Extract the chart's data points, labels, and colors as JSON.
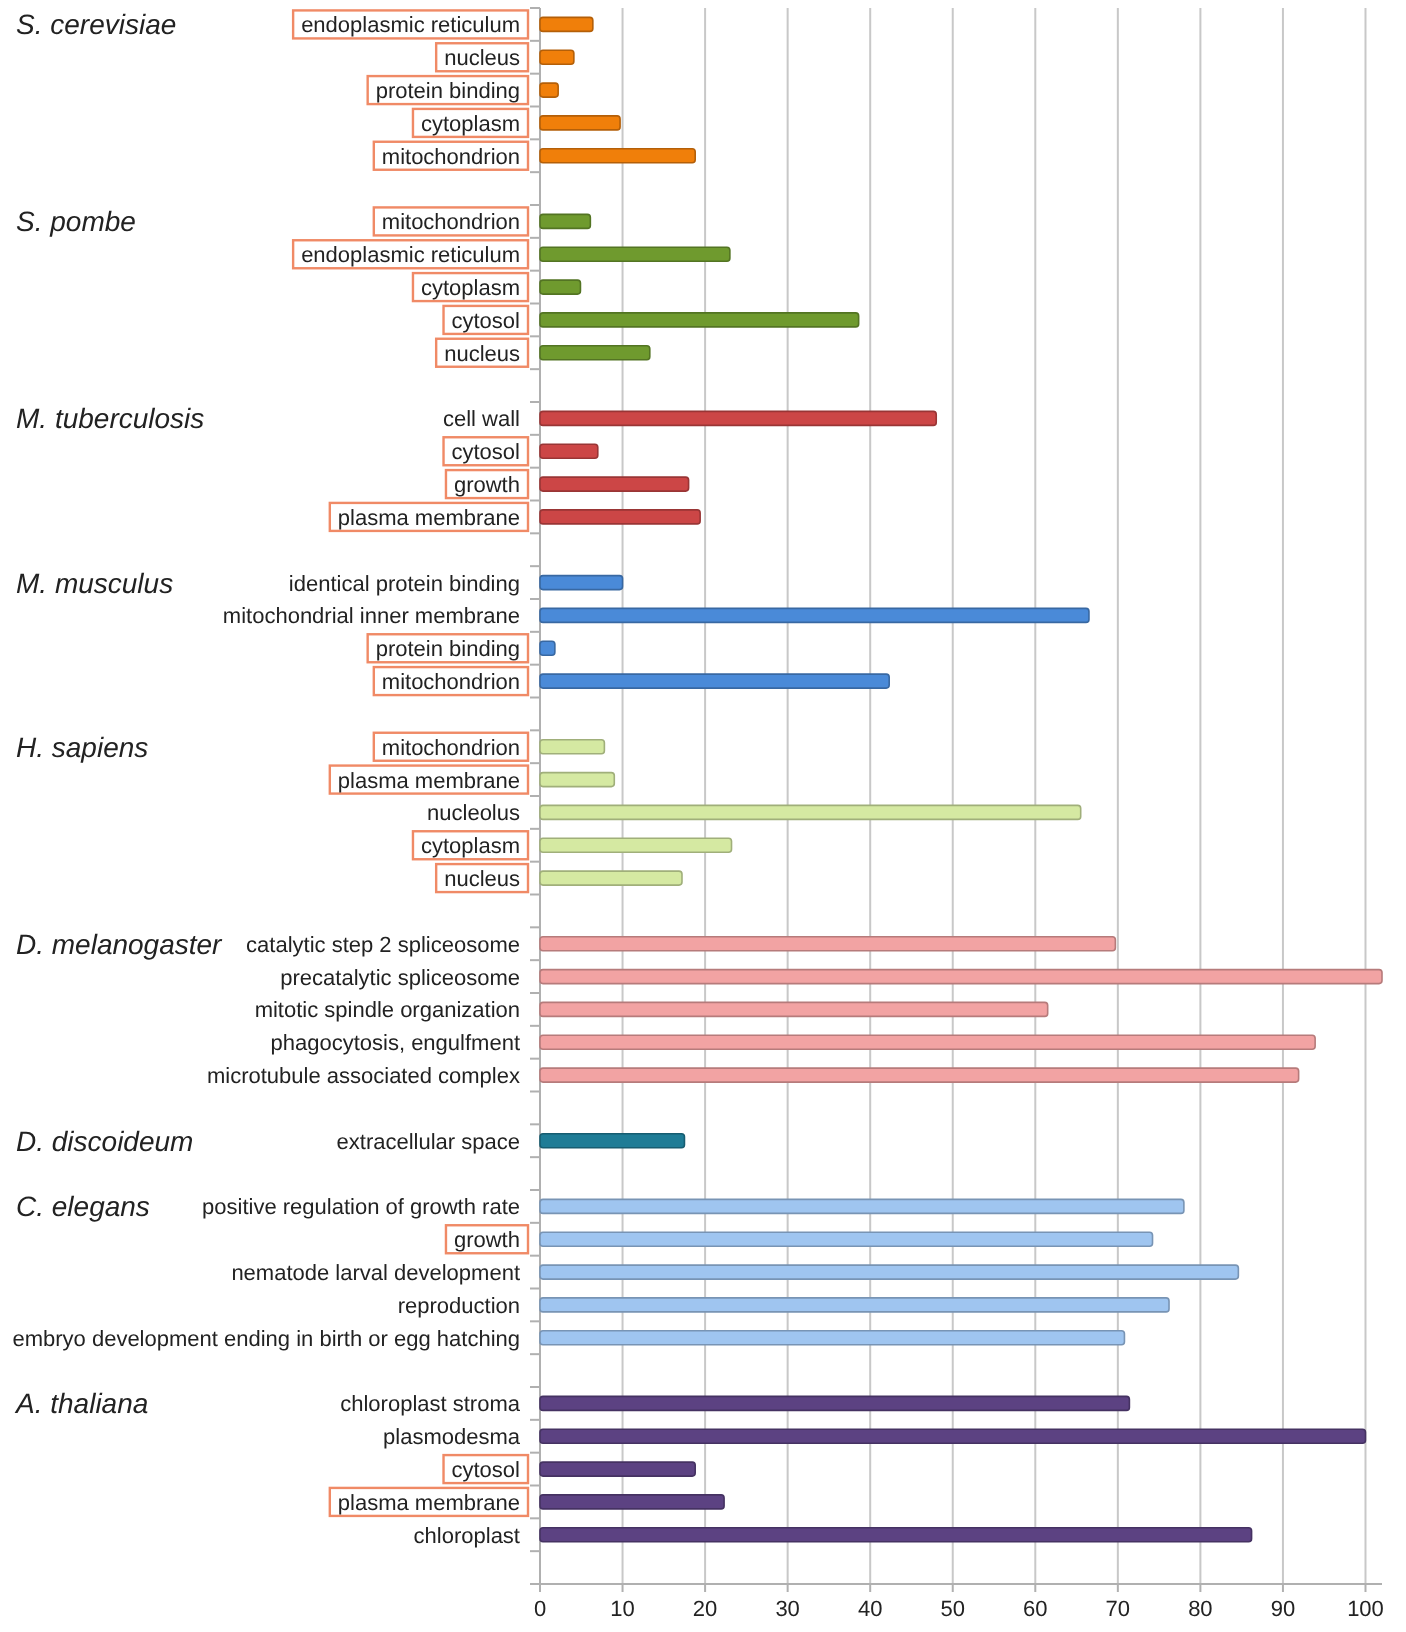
{
  "chart_data": {
    "type": "bar",
    "orientation": "horizontal",
    "grid": "x",
    "categories": [
      "endoplasmic reticulum",
      "nucleus",
      "protein binding",
      "cytoplasm",
      "mitochondrion",
      null,
      "mitochondrion",
      "endoplasmic reticulum",
      "cytoplasm",
      "cytosol",
      "nucleus",
      null,
      "cell wall",
      "cytosol",
      "growth",
      "plasma membrane",
      null,
      "identical protein binding",
      "mitochondrial inner membrane",
      "protein binding",
      "mitochondrion",
      null,
      "mitochondrion",
      "plasma membrane",
      "nucleolus",
      "cytoplasm",
      "nucleus",
      null,
      "catalytic step 2 spliceosome",
      "precatalytic spliceosome",
      "mitotic spindle organization",
      "phagocytosis, engulfment",
      "microtubule associated complex",
      null,
      "extracellular space",
      null,
      "positive regulation of growth rate",
      "growth",
      "nematode larval development",
      "reproduction",
      "embryo development ending in birth or egg hatching",
      null,
      "chloroplast stroma",
      "plasmodesma",
      "cytosol",
      "plasma membrane",
      "chloroplast",
      null
    ],
    "annotations": [
      "S. cerevisiae",
      "S. pombe",
      "M. tuberculosis",
      "M. musculus",
      "H. sapiens",
      "D. melanogaster",
      "D. discoideum",
      "C. elegans",
      "A. thaliana"
    ],
    "xlim": [
      0,
      102
    ],
    "xticks": [
      0,
      10,
      20,
      30,
      40,
      50,
      60,
      70,
      80,
      90,
      100
    ],
    "series": [
      {
        "color": "#f07f0a",
        "values": [
          6.4,
          4.1,
          2.2,
          9.7,
          18.8,
          null,
          null,
          null,
          null,
          null,
          null,
          null,
          null,
          null,
          null,
          null,
          null,
          null,
          null,
          null,
          null,
          null,
          null,
          null,
          null,
          null,
          null,
          null,
          null,
          null,
          null,
          null,
          null,
          null,
          null,
          null,
          null,
          null,
          null,
          null,
          null,
          null,
          null,
          null,
          null,
          null,
          null,
          null
        ]
      },
      {
        "color": "#6f9a2e",
        "values": [
          null,
          null,
          null,
          null,
          null,
          null,
          6.1,
          23,
          4.9,
          38.6,
          13.3,
          null,
          null,
          null,
          null,
          null,
          null,
          null,
          null,
          null,
          null,
          null,
          null,
          null,
          null,
          null,
          null,
          null,
          null,
          null,
          null,
          null,
          null,
          null,
          null,
          null,
          null,
          null,
          null,
          null,
          null,
          null,
          null,
          null,
          null,
          null,
          null,
          null
        ]
      },
      {
        "color": "#cc4646",
        "values": [
          null,
          null,
          null,
          null,
          null,
          null,
          null,
          null,
          null,
          null,
          null,
          null,
          48,
          7,
          18,
          19.4,
          null,
          null,
          null,
          null,
          null,
          null,
          null,
          null,
          null,
          null,
          null,
          null,
          null,
          null,
          null,
          null,
          null,
          null,
          null,
          null,
          null,
          null,
          null,
          null,
          null,
          null,
          null,
          null,
          null,
          null,
          null,
          null
        ]
      },
      {
        "color": "#4a8ad8",
        "values": [
          null,
          null,
          null,
          null,
          null,
          null,
          null,
          null,
          null,
          null,
          null,
          null,
          null,
          null,
          null,
          null,
          null,
          10,
          66.5,
          1.8,
          42.3,
          null,
          null,
          null,
          null,
          null,
          null,
          null,
          null,
          null,
          null,
          null,
          null,
          null,
          null,
          null,
          null,
          null,
          null,
          null,
          null,
          null,
          null,
          null,
          null,
          null,
          null,
          null
        ]
      },
      {
        "color": "#d5e9a2",
        "values": [
          null,
          null,
          null,
          null,
          null,
          null,
          null,
          null,
          null,
          null,
          null,
          null,
          null,
          null,
          null,
          null,
          null,
          null,
          null,
          null,
          null,
          null,
          7.8,
          9,
          65.5,
          23.2,
          17.2,
          null,
          null,
          null,
          null,
          null,
          null,
          null,
          null,
          null,
          null,
          null,
          null,
          null,
          null,
          null,
          null,
          null,
          null,
          null,
          null,
          null
        ]
      },
      {
        "color": "#f2a3a3",
        "values": [
          null,
          null,
          null,
          null,
          null,
          null,
          null,
          null,
          null,
          null,
          null,
          null,
          null,
          null,
          null,
          null,
          null,
          null,
          null,
          null,
          null,
          null,
          null,
          null,
          null,
          null,
          null,
          null,
          69.7,
          102,
          61.5,
          93.9,
          91.9,
          null,
          null,
          null,
          null,
          null,
          null,
          null,
          null,
          null,
          null,
          null,
          null,
          null,
          null,
          null
        ]
      },
      {
        "color": "#1f7c96",
        "values": [
          null,
          null,
          null,
          null,
          null,
          null,
          null,
          null,
          null,
          null,
          null,
          null,
          null,
          null,
          null,
          null,
          null,
          null,
          null,
          null,
          null,
          null,
          null,
          null,
          null,
          null,
          null,
          null,
          null,
          null,
          null,
          null,
          null,
          null,
          17.5,
          null,
          null,
          null,
          null,
          null,
          null,
          null,
          null,
          null,
          null,
          null,
          null,
          null
        ]
      },
      {
        "color": "#9fc5f0",
        "values": [
          null,
          null,
          null,
          null,
          null,
          null,
          null,
          null,
          null,
          null,
          null,
          null,
          null,
          null,
          null,
          null,
          null,
          null,
          null,
          null,
          null,
          null,
          null,
          null,
          null,
          null,
          null,
          null,
          null,
          null,
          null,
          null,
          null,
          null,
          null,
          null,
          78,
          74.2,
          84.6,
          76.2,
          70.8,
          null,
          null,
          null,
          null,
          null,
          null,
          null
        ]
      },
      {
        "color": "#5c4282",
        "values": [
          null,
          null,
          null,
          null,
          null,
          null,
          null,
          null,
          null,
          null,
          null,
          null,
          null,
          null,
          null,
          null,
          null,
          null,
          null,
          null,
          null,
          null,
          null,
          null,
          null,
          null,
          null,
          null,
          null,
          null,
          null,
          null,
          null,
          null,
          null,
          null,
          null,
          null,
          null,
          null,
          null,
          null,
          71.4,
          100,
          18.8,
          22.3,
          86.2,
          null
        ]
      }
    ]
  }
}
